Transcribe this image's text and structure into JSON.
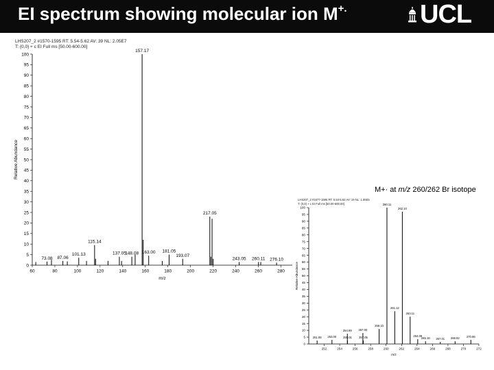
{
  "slide": {
    "title_text": "EI spectrum showing molecular ion M",
    "title_superscript": "+.",
    "logo_text": "UCL",
    "header_color": "#0b0b0b",
    "inset_caption": {
      "prefix": "M+· at ",
      "mz_label": "m/z",
      "suffix": " 260/262 Br isotope"
    }
  },
  "chart_data": [
    {
      "type": "bar",
      "header_lines": [
        "LHS207_2 #1570-1595 RT: 5.54-5.62 AV: 39 NL: 2.05E7",
        "T: {0,0} + c EI Full ms [50.00-600.00]"
      ],
      "xlabel": "m/z",
      "ylabel": "Relative Abundance",
      "xlim": [
        60,
        290
      ],
      "ylim": [
        0,
        100
      ],
      "xticks": [
        60,
        80,
        100,
        120,
        140,
        160,
        180,
        200,
        220,
        240,
        260,
        280
      ],
      "yticks": [
        0,
        5,
        10,
        15,
        20,
        25,
        30,
        35,
        40,
        45,
        50,
        55,
        60,
        65,
        70,
        75,
        80,
        85,
        90,
        95,
        100
      ],
      "peaks": [
        {
          "x": 63.1,
          "y": 1.5
        },
        {
          "x": 73.08,
          "y": 1.7,
          "label": "73.08"
        },
        {
          "x": 77.0,
          "y": 2.5
        },
        {
          "x": 87.06,
          "y": 2.0,
          "label": "87.06"
        },
        {
          "x": 91.0,
          "y": 1.8
        },
        {
          "x": 101.13,
          "y": 3.5,
          "label": "101.13"
        },
        {
          "x": 108.0,
          "y": 2.0
        },
        {
          "x": 115.14,
          "y": 9.5,
          "label": "115.14"
        },
        {
          "x": 116.0,
          "y": 3.0
        },
        {
          "x": 127.0,
          "y": 2.0
        },
        {
          "x": 137.05,
          "y": 4.0,
          "label": "137.05"
        },
        {
          "x": 139.0,
          "y": 2.0
        },
        {
          "x": 148.08,
          "y": 4.0,
          "label": "148.08"
        },
        {
          "x": 151.0,
          "y": 5.0
        },
        {
          "x": 157.17,
          "y": 100,
          "label": "157.17"
        },
        {
          "x": 158.1,
          "y": 12.0
        },
        {
          "x": 163.0,
          "y": 4.5,
          "label": "163.00"
        },
        {
          "x": 175.0,
          "y": 2.0
        },
        {
          "x": 181.05,
          "y": 5.0,
          "label": "181.05"
        },
        {
          "x": 193.07,
          "y": 3.0,
          "label": "193.07"
        },
        {
          "x": 217.05,
          "y": 23.0,
          "label": "217.05"
        },
        {
          "x": 218.0,
          "y": 4.0
        },
        {
          "x": 219.05,
          "y": 22.0
        },
        {
          "x": 220.0,
          "y": 3.0
        },
        {
          "x": 243.05,
          "y": 1.5,
          "label": "243.05"
        },
        {
          "x": 260.11,
          "y": 1.5,
          "label": "260.11"
        },
        {
          "x": 262.1,
          "y": 1.5
        },
        {
          "x": 276.1,
          "y": 1.2,
          "label": "276.10"
        }
      ]
    },
    {
      "type": "bar",
      "header_lines": [
        "LHS207_2 #1577-1595 RT: 5.54-5.62 AV: 19 NL: 1.55E5",
        "T: {0,0} + c EI Full ms [50.00-600.00]"
      ],
      "xlabel": "m/z",
      "ylabel": "Relative Abundance",
      "xlim": [
        250,
        272
      ],
      "ylim": [
        0,
        100
      ],
      "xticks": [
        252,
        254,
        256,
        258,
        260,
        262,
        264,
        266,
        268,
        270,
        272
      ],
      "yticks": [
        0,
        5,
        10,
        15,
        20,
        25,
        30,
        35,
        40,
        45,
        50,
        55,
        60,
        65,
        70,
        75,
        80,
        85,
        90,
        95,
        100
      ],
      "peaks": [
        {
          "x": 251.08,
          "y": 2.5,
          "label": "251.08"
        },
        {
          "x": 253.0,
          "y": 3.0,
          "label": "253.00"
        },
        {
          "x": 254.99,
          "y": 7.5,
          "label": "254.99"
        },
        {
          "x": 255.01,
          "y": 2.5,
          "label": "255.01"
        },
        {
          "x": 257.0,
          "y": 8.0,
          "label": "257.00"
        },
        {
          "x": 257.05,
          "y": 2.5,
          "label": "257.05"
        },
        {
          "x": 259.1,
          "y": 11.0,
          "label": "259.10"
        },
        {
          "x": 260.11,
          "y": 100,
          "label": "260.11"
        },
        {
          "x": 261.12,
          "y": 24.0,
          "label": "261.12"
        },
        {
          "x": 262.1,
          "y": 97.0,
          "label": "262.10"
        },
        {
          "x": 263.11,
          "y": 20.0,
          "label": "263.11"
        },
        {
          "x": 264.09,
          "y": 3.5,
          "label": "264.09"
        },
        {
          "x": 265.1,
          "y": 2.0,
          "label": "265.10"
        },
        {
          "x": 267.01,
          "y": 1.5,
          "label": "267.01"
        },
        {
          "x": 268.92,
          "y": 2.0,
          "label": "268.92"
        },
        {
          "x": 270.96,
          "y": 3.0,
          "label": "270.96"
        }
      ]
    }
  ]
}
